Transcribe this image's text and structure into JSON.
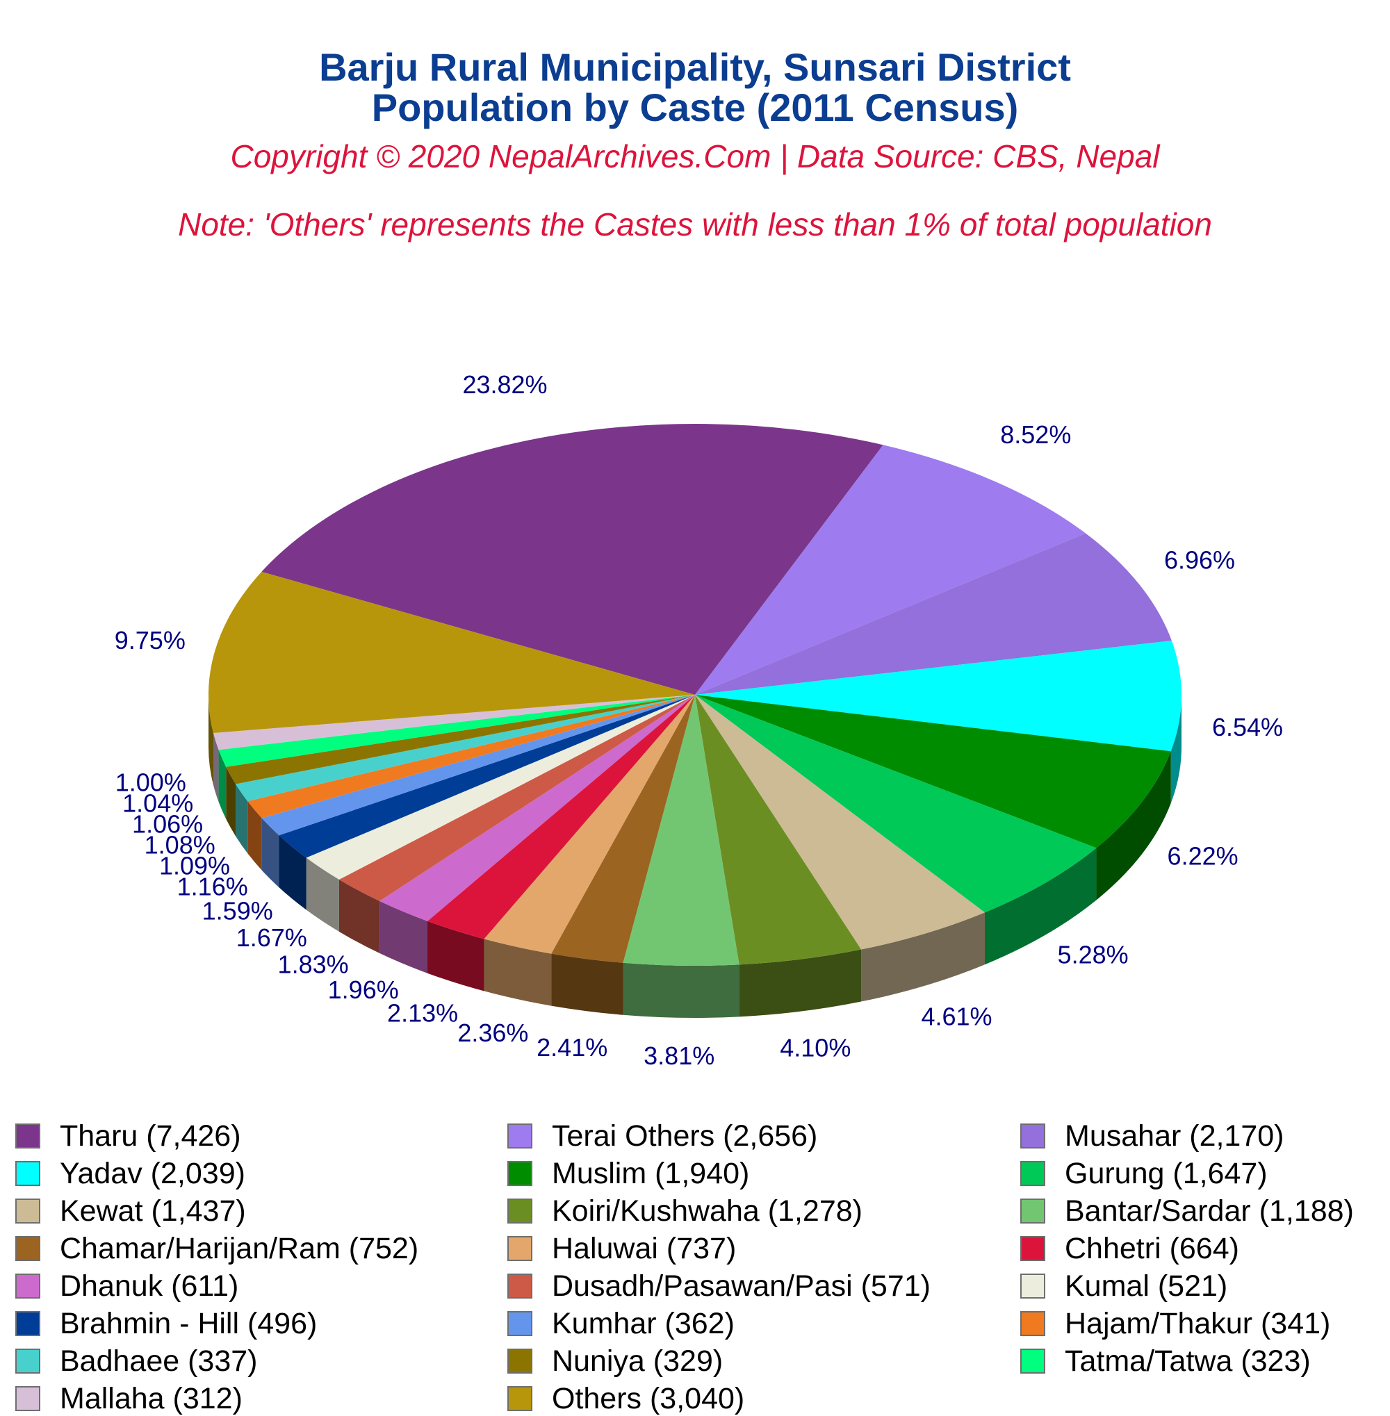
{
  "title_line1": "Barju Rural Municipality, Sunsari District",
  "title_line2": "Population by Caste (2011 Census)",
  "copyright": "Copyright © 2020 NepalArchives.Com | Data Source: CBS, Nepal",
  "note": "Note: 'Others' represents the Castes with less than 1% of total population",
  "chart_data": {
    "type": "pie",
    "style": "3d",
    "slices": [
      {
        "name": "Tharu",
        "value": 7426,
        "label": "Tharu (7,426)",
        "pct": "23.82%",
        "color": "#7b368b"
      },
      {
        "name": "Terai Others",
        "value": 2656,
        "label": "Terai Others (2,656)",
        "pct": "8.52%",
        "color": "#9e7bee"
      },
      {
        "name": "Musahar",
        "value": 2170,
        "label": "Musahar (2,170)",
        "pct": "6.96%",
        "color": "#9370db"
      },
      {
        "name": "Yadav",
        "value": 2039,
        "label": "Yadav (2,039)",
        "pct": "6.54%",
        "color": "#00ffff"
      },
      {
        "name": "Muslim",
        "value": 1940,
        "label": "Muslim (1,940)",
        "pct": "6.22%",
        "color": "#008c00"
      },
      {
        "name": "Gurung",
        "value": 1647,
        "label": "Gurung (1,647)",
        "pct": "5.28%",
        "color": "#00c957"
      },
      {
        "name": "Kewat",
        "value": 1437,
        "label": "Kewat (1,437)",
        "pct": "4.61%",
        "color": "#cdbb96"
      },
      {
        "name": "Koiri/Kushwaha",
        "value": 1278,
        "label": "Koiri/Kushwaha (1,278)",
        "pct": "4.10%",
        "color": "#6b8e23"
      },
      {
        "name": "Bantar/Sardar",
        "value": 1188,
        "label": "Bantar/Sardar (1,188)",
        "pct": "3.81%",
        "color": "#72c672"
      },
      {
        "name": "Chamar/Harijan/Ram",
        "value": 752,
        "label": "Chamar/Harijan/Ram (752)",
        "pct": "2.41%",
        "color": "#9b6420"
      },
      {
        "name": "Haluwai",
        "value": 737,
        "label": "Haluwai (737)",
        "pct": "2.36%",
        "color": "#e3a76b"
      },
      {
        "name": "Chhetri",
        "value": 664,
        "label": "Chhetri (664)",
        "pct": "2.13%",
        "color": "#dc143c"
      },
      {
        "name": "Dhanuk",
        "value": 611,
        "label": "Dhanuk (611)",
        "pct": "1.96%",
        "color": "#cd6acd"
      },
      {
        "name": "Dusadh/Pasawan/Pasi",
        "value": 571,
        "label": "Dusadh/Pasawan/Pasi (571)",
        "pct": "1.83%",
        "color": "#cd5a46"
      },
      {
        "name": "Kumal",
        "value": 521,
        "label": "Kumal (521)",
        "pct": "1.67%",
        "color": "#ededde"
      },
      {
        "name": "Brahmin - Hill",
        "value": 496,
        "label": "Brahmin - Hill (496)",
        "pct": "1.59%",
        "color": "#003d96"
      },
      {
        "name": "Kumhar",
        "value": 362,
        "label": "Kumhar (362)",
        "pct": "1.16%",
        "color": "#6495ed"
      },
      {
        "name": "Hajam/Thakur",
        "value": 341,
        "label": "Hajam/Thakur (341)",
        "pct": "1.09%",
        "color": "#f07a20"
      },
      {
        "name": "Badhaee",
        "value": 337,
        "label": "Badhaee (337)",
        "pct": "1.08%",
        "color": "#48d1cc"
      },
      {
        "name": "Nuniya",
        "value": 329,
        "label": "Nuniya (329)",
        "pct": "1.06%",
        "color": "#8b7500"
      },
      {
        "name": "Tatma/Tatwa",
        "value": 323,
        "label": "Tatma/Tatwa (323)",
        "pct": "1.04%",
        "color": "#00ff7f"
      },
      {
        "name": "Mallaha",
        "value": 312,
        "label": "Mallaha (312)",
        "pct": "1.00%",
        "color": "#d8bfd8"
      },
      {
        "name": "Others",
        "value": 3040,
        "label": "Others (3,040)",
        "pct": "9.75%",
        "color": "#b8960b"
      }
    ]
  }
}
